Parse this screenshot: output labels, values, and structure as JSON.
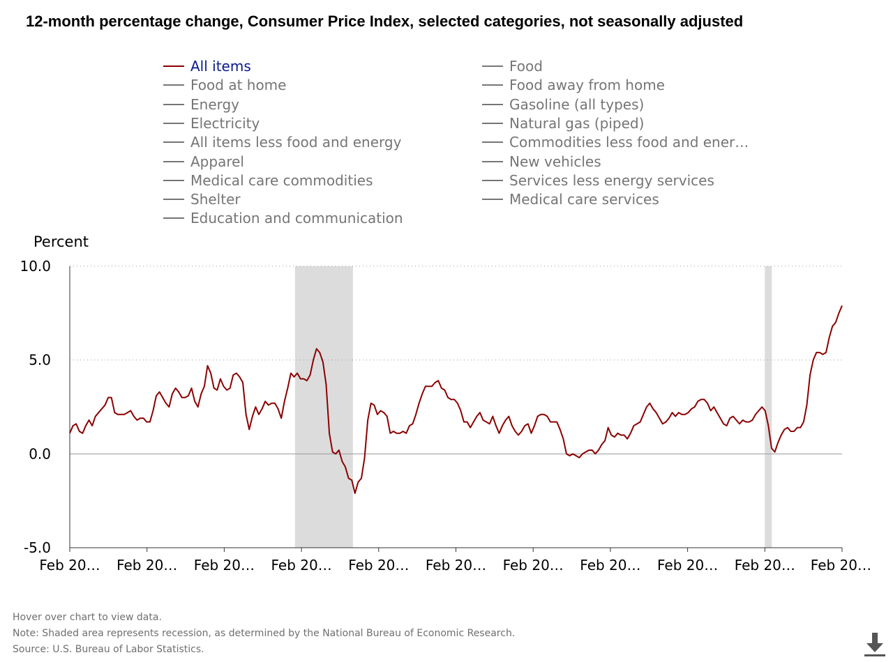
{
  "title": "12-month percentage change, Consumer Price Index, selected categories, not seasonally adjusted",
  "legend": [
    {
      "label": "All items",
      "color": "#8b0000",
      "active": true
    },
    {
      "label": "Food",
      "color": "#757575",
      "active": false
    },
    {
      "label": "Food at home",
      "color": "#757575",
      "active": false
    },
    {
      "label": "Food away from home",
      "color": "#757575",
      "active": false
    },
    {
      "label": "Energy",
      "color": "#757575",
      "active": false
    },
    {
      "label": "Gasoline (all types)",
      "color": "#757575",
      "active": false
    },
    {
      "label": "Electricity",
      "color": "#757575",
      "active": false
    },
    {
      "label": "Natural gas (piped)",
      "color": "#757575",
      "active": false
    },
    {
      "label": "All items less food and energy",
      "color": "#757575",
      "active": false
    },
    {
      "label": "Commodities less food and ener…",
      "color": "#757575",
      "active": false
    },
    {
      "label": "Apparel",
      "color": "#757575",
      "active": false
    },
    {
      "label": "New vehicles",
      "color": "#757575",
      "active": false
    },
    {
      "label": "Medical care commodities",
      "color": "#757575",
      "active": false
    },
    {
      "label": "Services less energy services",
      "color": "#757575",
      "active": false
    },
    {
      "label": "Shelter",
      "color": "#757575",
      "active": false
    },
    {
      "label": "Medical care services",
      "color": "#757575",
      "active": false
    },
    {
      "label": "Education and communication",
      "color": "#757575",
      "active": false
    }
  ],
  "chart_data": {
    "type": "line",
    "ylabel": "Percent",
    "ylim": [
      -5.0,
      10.0
    ],
    "yticks": [
      "10.0",
      "5.0",
      "0.0",
      "-5.0"
    ],
    "xtick_labels": [
      "Feb 20…",
      "Feb 20…",
      "Feb 20…",
      "Feb 20…",
      "Feb 20…",
      "Feb 20…",
      "Feb 20…",
      "Feb 20…",
      "Feb 20…",
      "Feb 20…",
      "Feb 20…"
    ],
    "x_start": "2002-02",
    "x_end": "2022-02",
    "recessions": [
      [
        "2007-12",
        "2009-06"
      ],
      [
        "2020-02",
        "2020-04"
      ]
    ],
    "grid": "dotted horizontal",
    "series": [
      {
        "name": "All items",
        "color": "#8b0000",
        "values": [
          1.1,
          1.5,
          1.6,
          1.2,
          1.1,
          1.5,
          1.8,
          1.5,
          2.0,
          2.2,
          2.4,
          2.6,
          3.0,
          3.0,
          2.2,
          2.1,
          2.1,
          2.1,
          2.2,
          2.3,
          2.0,
          1.8,
          1.9,
          1.9,
          1.7,
          1.7,
          2.3,
          3.1,
          3.3,
          3.0,
          2.7,
          2.5,
          3.2,
          3.5,
          3.3,
          3.0,
          3.0,
          3.1,
          3.5,
          2.8,
          2.5,
          3.2,
          3.6,
          4.7,
          4.3,
          3.5,
          3.4,
          4.0,
          3.6,
          3.4,
          3.5,
          4.2,
          4.3,
          4.1,
          3.8,
          2.1,
          1.3,
          2.0,
          2.5,
          2.1,
          2.4,
          2.8,
          2.6,
          2.7,
          2.7,
          2.4,
          1.9,
          2.8,
          3.5,
          4.3,
          4.1,
          4.3,
          4.0,
          4.0,
          3.9,
          4.2,
          5.0,
          5.6,
          5.4,
          4.9,
          3.7,
          1.1,
          0.1,
          0.0,
          0.2,
          -0.4,
          -0.7,
          -1.3,
          -1.4,
          -2.1,
          -1.5,
          -1.3,
          -0.2,
          1.8,
          2.7,
          2.6,
          2.1,
          2.3,
          2.2,
          2.0,
          1.1,
          1.2,
          1.1,
          1.1,
          1.2,
          1.1,
          1.5,
          1.6,
          2.1,
          2.7,
          3.2,
          3.6,
          3.6,
          3.6,
          3.8,
          3.9,
          3.5,
          3.4,
          3.0,
          2.9,
          2.9,
          2.7,
          2.3,
          1.7,
          1.7,
          1.4,
          1.7,
          2.0,
          2.2,
          1.8,
          1.7,
          1.6,
          2.0,
          1.5,
          1.1,
          1.5,
          1.8,
          2.0,
          1.5,
          1.2,
          1.0,
          1.2,
          1.5,
          1.6,
          1.1,
          1.5,
          2.0,
          2.1,
          2.1,
          2.0,
          1.7,
          1.7,
          1.7,
          1.3,
          0.8,
          0.0,
          -0.1,
          0.0,
          -0.1,
          -0.2,
          0.0,
          0.1,
          0.2,
          0.2,
          0.0,
          0.2,
          0.5,
          0.7,
          1.4,
          1.0,
          0.9,
          1.1,
          1.0,
          1.0,
          0.8,
          1.1,
          1.5,
          1.6,
          1.7,
          2.1,
          2.5,
          2.7,
          2.4,
          2.2,
          1.9,
          1.6,
          1.7,
          1.9,
          2.2,
          2.0,
          2.2,
          2.1,
          2.1,
          2.2,
          2.4,
          2.5,
          2.8,
          2.9,
          2.9,
          2.7,
          2.3,
          2.5,
          2.2,
          1.9,
          1.6,
          1.5,
          1.9,
          2.0,
          1.8,
          1.6,
          1.8,
          1.7,
          1.7,
          1.8,
          2.1,
          2.3,
          2.5,
          2.3,
          1.5,
          0.3,
          0.1,
          0.6,
          1.0,
          1.3,
          1.4,
          1.2,
          1.2,
          1.4,
          1.4,
          1.7,
          2.6,
          4.2,
          5.0,
          5.4,
          5.4,
          5.3,
          5.4,
          6.2,
          6.8,
          7.0,
          7.5,
          7.9
        ]
      }
    ]
  },
  "footer": {
    "hover": "Hover over chart to view data.",
    "note": "Note: Shaded area represents recession, as determined by the National Bureau of Economic Research.",
    "source": "Source: U.S. Bureau of Labor Statistics."
  }
}
